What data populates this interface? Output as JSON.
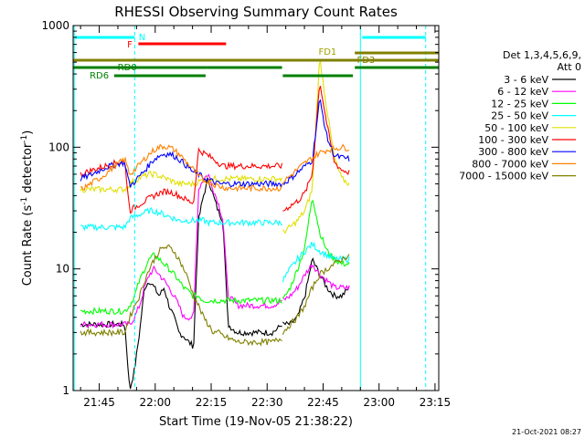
{
  "chart_data": {
    "type": "line",
    "title": "RHESSI Observing Summary Count Rates",
    "xlabel": "Start Time (19-Nov-05 21:38:22)",
    "ylabel_main": "Count Rate (s",
    "ylabel_sup1": "-1",
    "ylabel_mid": " detector",
    "ylabel_sup2": "-1",
    "ylabel_end": ")",
    "yscale": "log",
    "ylim": [
      1,
      1000
    ],
    "x_unit": "minutes after 21:38",
    "xlim": [
      0,
      98
    ],
    "x_ticks": [
      {
        "x": 7,
        "label": "21:45"
      },
      {
        "x": 22,
        "label": "22:00"
      },
      {
        "x": 37,
        "label": "22:15"
      },
      {
        "x": 52,
        "label": "22:30"
      },
      {
        "x": 67,
        "label": "22:45"
      },
      {
        "x": 82,
        "label": "23:00"
      },
      {
        "x": 97,
        "label": "23:15"
      }
    ],
    "y_ticks": [
      {
        "y": 1,
        "label": "1"
      },
      {
        "y": 10,
        "label": "10"
      },
      {
        "y": 100,
        "label": "100"
      },
      {
        "y": 1000,
        "label": "1000"
      }
    ],
    "legend_title": "Det 1,3,4,5,6,9,",
    "legend_subtitle": "Att 0",
    "series": [
      {
        "name": "3 - 6 keV",
        "color": "#000000",
        "seg1": [
          3.5,
          3.5,
          3.5,
          3.5,
          3.5,
          3.5,
          3.5,
          3.5,
          3.5,
          3.5,
          1,
          1.5,
          3,
          7,
          8,
          7,
          6,
          7,
          5,
          4,
          3,
          2.8,
          2.5,
          2.3,
          25,
          40,
          55,
          40,
          30,
          25,
          3.5,
          3.2,
          3,
          3,
          3,
          3,
          3,
          3,
          3,
          3,
          3.2,
          3.5
        ],
        "seg2": [
          3.5,
          3.5,
          4,
          6,
          12,
          9,
          7,
          6,
          6,
          7
        ]
      },
      {
        "name": "6 - 12 keV",
        "color": "#ff00ff",
        "seg1": [
          3.5,
          3.5,
          3.5,
          3.5,
          3.5,
          3.5,
          3.5,
          3.5,
          3.5,
          3.5,
          3.5,
          4,
          5,
          7,
          9,
          10,
          9,
          8,
          7,
          6,
          5,
          4,
          4,
          4,
          45,
          55,
          60,
          45,
          35,
          25,
          6,
          5.5,
          5,
          5,
          5,
          5,
          5,
          5,
          5,
          5,
          5.2,
          5.5
        ],
        "seg2": [
          5.5,
          6,
          7,
          9,
          11,
          9,
          8,
          7,
          7,
          7
        ]
      },
      {
        "name": "12 - 25 keV",
        "color": "#00ff00",
        "seg1": [
          4.5,
          4.5,
          4.5,
          4.5,
          4.5,
          4.5,
          4.5,
          4.5,
          4.5,
          4.5,
          5,
          6,
          8,
          10,
          12,
          13,
          12,
          11,
          10,
          9,
          8,
          7,
          6.5,
          6,
          6,
          5.5,
          5.5,
          5.5,
          5.5,
          5.5,
          5.5,
          5.5,
          5.5,
          5.5,
          5.5,
          5.5,
          5.5,
          5.5,
          5.5,
          5.5,
          5.5,
          5.5
        ],
        "seg2": [
          5.5,
          7,
          10,
          15,
          40,
          20,
          14,
          12,
          11,
          11
        ]
      },
      {
        "name": "25 - 50 keV",
        "color": "#00ffff",
        "seg1": [
          22,
          22,
          22,
          22,
          22,
          22,
          22,
          22,
          22,
          22,
          26,
          27,
          28,
          29,
          30,
          30,
          29,
          28,
          27,
          26,
          25,
          25,
          25,
          25,
          25,
          25,
          24,
          24,
          24,
          24,
          24,
          24,
          24,
          24,
          24,
          24,
          24,
          24,
          24,
          24,
          24,
          24
        ],
        "seg2": [
          8,
          10,
          12,
          14,
          16,
          14,
          13,
          12,
          12,
          12
        ]
      },
      {
        "name": "50 - 100 keV",
        "color": "#e0e000",
        "seg1": [
          45,
          45,
          45,
          45,
          45,
          45,
          45,
          45,
          45,
          45,
          50,
          53,
          56,
          58,
          60,
          60,
          58,
          56,
          54,
          52,
          50,
          50,
          50,
          50,
          52,
          54,
          55,
          55,
          55,
          55,
          55,
          55,
          55,
          55,
          55,
          55,
          55,
          55,
          55,
          55,
          55,
          55
        ],
        "seg2": [
          20,
          22,
          25,
          30,
          45,
          550,
          200,
          80,
          55,
          50
        ]
      },
      {
        "name": "100 - 300 keV",
        "color": "#ff0000",
        "seg1": [
          60,
          62,
          64,
          66,
          68,
          70,
          72,
          74,
          75,
          76,
          30,
          32,
          34,
          36,
          38,
          40,
          42,
          43,
          43,
          42,
          40,
          38,
          36,
          35,
          95,
          90,
          85,
          80,
          75,
          70,
          70,
          70,
          70,
          70,
          70,
          70,
          70,
          70,
          70,
          70,
          70,
          70
        ],
        "seg2": [
          30,
          33,
          36,
          42,
          60,
          350,
          150,
          75,
          65,
          62
        ]
      },
      {
        "name": "300 - 800 keV",
        "color": "#0000ff",
        "seg1": [
          55,
          57,
          59,
          62,
          65,
          68,
          70,
          72,
          74,
          75,
          48,
          52,
          58,
          64,
          72,
          80,
          85,
          88,
          88,
          85,
          80,
          74,
          68,
          62,
          60,
          56,
          54,
          52,
          50,
          50,
          50,
          50,
          50,
          50,
          50,
          50,
          50,
          50,
          50,
          50,
          50,
          50
        ],
        "seg2": [
          50,
          55,
          62,
          70,
          78,
          250,
          120,
          85,
          82,
          80
        ]
      },
      {
        "name": "800 - 7000 keV",
        "color": "#ff8000",
        "seg1": [
          45,
          47,
          50,
          53,
          56,
          60,
          65,
          70,
          75,
          80,
          60,
          65,
          72,
          80,
          88,
          95,
          100,
          102,
          100,
          95,
          88,
          80,
          72,
          65,
          58,
          54,
          52,
          50,
          48,
          47,
          46,
          46,
          46,
          46,
          46,
          46,
          46,
          46,
          46,
          46,
          46,
          46
        ],
        "seg2": [
          52,
          58,
          66,
          74,
          82,
          90,
          95,
          98,
          100,
          98
        ]
      },
      {
        "name": "7000 - 15000 keV",
        "color": "#808000",
        "seg1": [
          3,
          3,
          3,
          3,
          3,
          3,
          3,
          3,
          3,
          3,
          4,
          5,
          6,
          8,
          10,
          12,
          14,
          15,
          15,
          14,
          12,
          10,
          8,
          6,
          5,
          4,
          3.5,
          3,
          3,
          2.8,
          2.7,
          2.6,
          2.5,
          2.5,
          2.5,
          2.5,
          2.5,
          2.5,
          2.5,
          2.5,
          2.6,
          2.7
        ],
        "seg2": [
          3,
          3.5,
          4,
          5,
          7,
          9,
          10,
          11,
          12,
          13
        ]
      }
    ],
    "annotations": [
      {
        "text": "N",
        "color": "#00ffff"
      },
      {
        "text": "F",
        "color": "#ff0000"
      },
      {
        "text": "FD1",
        "color": "#a0a000"
      },
      {
        "text": "FD3",
        "color": "#808000"
      },
      {
        "text": "RD0",
        "color": "#008000"
      },
      {
        "text": "RD6",
        "color": "#008000"
      }
    ]
  },
  "footer": {
    "timestamp": "21-Oct-2021 08:27"
  }
}
